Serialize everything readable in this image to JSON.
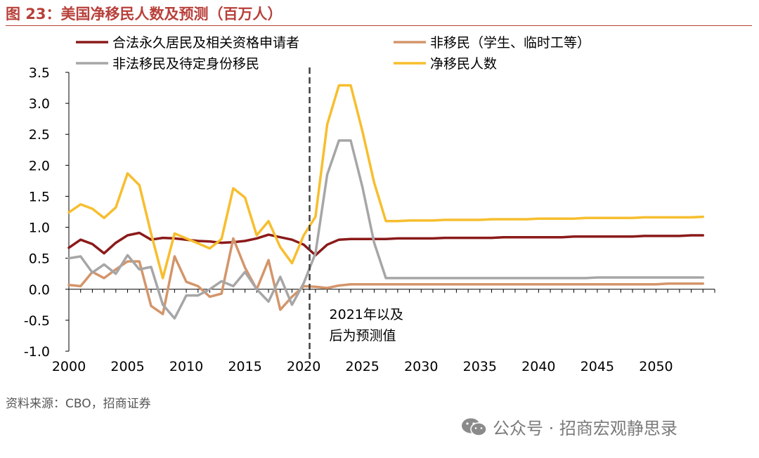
{
  "figure": {
    "title": "图 23：美国净移民人数及预测（百万人）",
    "source": "资料来源：CBO，招商证券",
    "watermark": "公众号 · 招商宏观静思录",
    "watermark_icon": "wechat-icon"
  },
  "colors": {
    "title": "#b8403a",
    "legal": "#8b1a1a",
    "nonimmigrant": "#d4956a",
    "unauthorized": "#a6a6a6",
    "net": "#f7be2e",
    "axis": "#000000",
    "forecast_line": "#404040"
  },
  "chart_data": {
    "type": "line",
    "title": "美国净移民人数及预测（百万人）",
    "xlabel": "",
    "ylabel": "",
    "xlim": [
      2000,
      2055
    ],
    "ylim": [
      -1.0,
      3.5
    ],
    "x_ticks": [
      2000,
      2005,
      2010,
      2015,
      2020,
      2025,
      2030,
      2035,
      2040,
      2045,
      2050
    ],
    "y_ticks": [
      -1.0,
      -0.5,
      0.0,
      0.5,
      1.0,
      1.5,
      2.0,
      2.5,
      3.0,
      3.5
    ],
    "y_tick_labels": [
      "-1.0",
      "-0.5",
      "0.0",
      "0.5",
      "1.0",
      "1.5",
      "2.0",
      "2.5",
      "3.0",
      "3.5"
    ],
    "grid": false,
    "legend_position": "top",
    "forecast_start": 2020.5,
    "annotation": [
      "2021年以及",
      "后为预测值"
    ],
    "x": [
      2000,
      2001,
      2002,
      2003,
      2004,
      2005,
      2006,
      2007,
      2008,
      2009,
      2010,
      2011,
      2012,
      2013,
      2014,
      2015,
      2016,
      2017,
      2018,
      2019,
      2020,
      2021,
      2022,
      2023,
      2024,
      2025,
      2026,
      2027,
      2028,
      2029,
      2030,
      2031,
      2032,
      2033,
      2034,
      2035,
      2036,
      2037,
      2038,
      2039,
      2040,
      2041,
      2042,
      2043,
      2044,
      2045,
      2046,
      2047,
      2048,
      2049,
      2050,
      2051,
      2052,
      2053,
      2054
    ],
    "series": [
      {
        "key": "legal",
        "name": "合法永久居民及相关资格申请者",
        "color_key": "legal",
        "values": [
          0.67,
          0.8,
          0.73,
          0.58,
          0.75,
          0.87,
          0.91,
          0.8,
          0.83,
          0.82,
          0.8,
          0.78,
          0.77,
          0.75,
          0.76,
          0.78,
          0.82,
          0.88,
          0.84,
          0.8,
          0.72,
          0.55,
          0.72,
          0.8,
          0.81,
          0.81,
          0.81,
          0.81,
          0.82,
          0.82,
          0.82,
          0.82,
          0.83,
          0.83,
          0.83,
          0.83,
          0.83,
          0.84,
          0.84,
          0.84,
          0.84,
          0.84,
          0.84,
          0.85,
          0.85,
          0.85,
          0.85,
          0.85,
          0.85,
          0.86,
          0.86,
          0.86,
          0.86,
          0.87,
          0.87
        ]
      },
      {
        "key": "nonimmigrant",
        "name": "非移民（学生、临时工等）",
        "color_key": "nonimmigrant",
        "values": [
          0.07,
          0.05,
          0.28,
          0.18,
          0.32,
          0.45,
          0.45,
          -0.27,
          -0.4,
          0.53,
          0.12,
          0.05,
          -0.12,
          -0.07,
          0.82,
          0.35,
          0.0,
          0.47,
          -0.33,
          -0.12,
          0.05,
          0.04,
          0.02,
          0.06,
          0.08,
          0.08,
          0.08,
          0.08,
          0.08,
          0.08,
          0.08,
          0.08,
          0.08,
          0.08,
          0.08,
          0.08,
          0.08,
          0.08,
          0.08,
          0.08,
          0.08,
          0.08,
          0.08,
          0.08,
          0.08,
          0.08,
          0.08,
          0.08,
          0.08,
          0.08,
          0.08,
          0.09,
          0.09,
          0.09,
          0.09
        ]
      },
      {
        "key": "unauthorized",
        "name": "非法移民及待定身份移民",
        "color_key": "unauthorized",
        "values": [
          0.5,
          0.53,
          0.27,
          0.4,
          0.25,
          0.55,
          0.32,
          0.36,
          -0.25,
          -0.47,
          -0.1,
          -0.1,
          0.0,
          0.13,
          0.05,
          0.28,
          0.0,
          -0.2,
          0.2,
          -0.25,
          0.1,
          0.58,
          1.85,
          2.4,
          2.4,
          1.65,
          0.75,
          0.18,
          0.18,
          0.18,
          0.18,
          0.18,
          0.18,
          0.18,
          0.18,
          0.18,
          0.18,
          0.18,
          0.18,
          0.18,
          0.18,
          0.18,
          0.18,
          0.18,
          0.18,
          0.19,
          0.19,
          0.19,
          0.19,
          0.19,
          0.19,
          0.19,
          0.19,
          0.19,
          0.19
        ]
      },
      {
        "key": "net",
        "name": "净移民人数",
        "color_key": "net",
        "values": [
          1.24,
          1.37,
          1.3,
          1.15,
          1.32,
          1.87,
          1.68,
          0.9,
          0.18,
          0.9,
          0.82,
          0.74,
          0.66,
          0.81,
          1.63,
          1.48,
          0.87,
          1.1,
          0.68,
          0.42,
          0.87,
          1.17,
          2.66,
          3.29,
          3.29,
          2.55,
          1.72,
          1.1,
          1.1,
          1.11,
          1.11,
          1.11,
          1.12,
          1.12,
          1.12,
          1.12,
          1.13,
          1.13,
          1.13,
          1.13,
          1.14,
          1.14,
          1.14,
          1.14,
          1.15,
          1.15,
          1.15,
          1.15,
          1.15,
          1.16,
          1.16,
          1.16,
          1.16,
          1.16,
          1.17
        ]
      }
    ]
  }
}
